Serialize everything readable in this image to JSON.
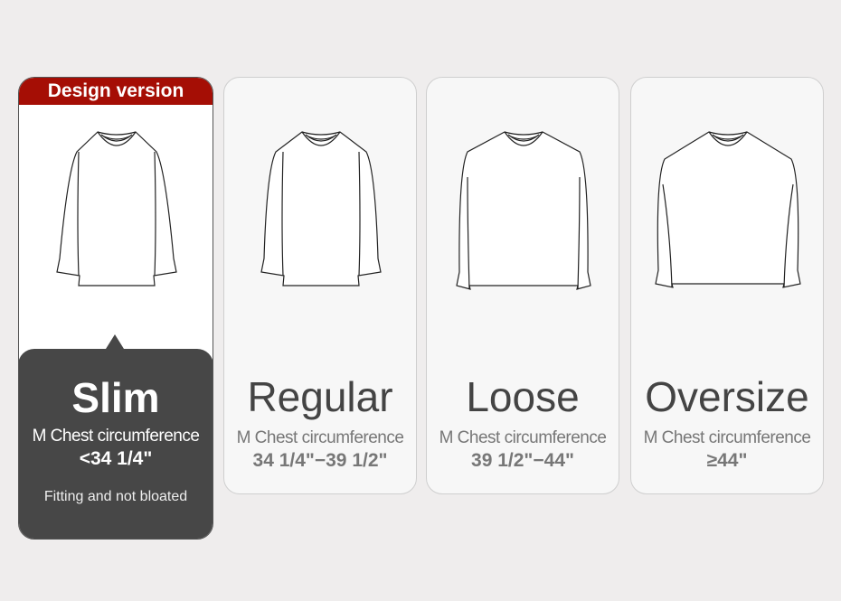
{
  "badge": "Design version",
  "colors": {
    "badge": "#a50e05",
    "highlight": "#474747"
  },
  "fits": [
    {
      "name": "Slim",
      "label": "M Chest circumference",
      "range": "<34 1/4\"",
      "note": "Fitting and not bloated",
      "icon": "slim-long-sleeve-shirt-icon"
    },
    {
      "name": "Regular",
      "label": "M Chest circumference",
      "range": "34 1/4\"−39 1/2\"",
      "icon": "regular-long-sleeve-shirt-icon"
    },
    {
      "name": "Loose",
      "label": "M Chest circumference",
      "range": "39 1/2\"−44\"",
      "icon": "loose-long-sleeve-shirt-icon"
    },
    {
      "name": "Oversize",
      "label": "M Chest circumference",
      "range": "≥44\"",
      "icon": "oversize-long-sleeve-shirt-icon"
    }
  ]
}
